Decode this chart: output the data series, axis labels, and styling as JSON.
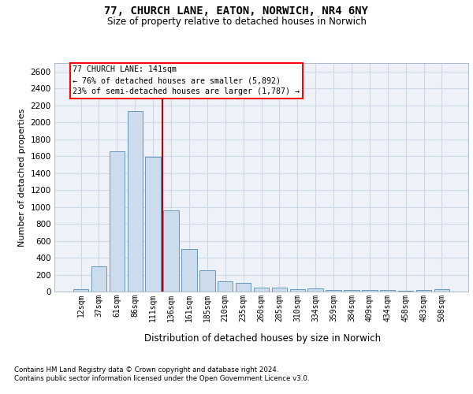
{
  "title_line1": "77, CHURCH LANE, EATON, NORWICH, NR4 6NY",
  "title_line2": "Size of property relative to detached houses in Norwich",
  "xlabel": "Distribution of detached houses by size in Norwich",
  "ylabel": "Number of detached properties",
  "bar_color": "#ccdcec",
  "bar_edge_color": "#6699bb",
  "grid_color": "#ccd8e8",
  "background_color": "#eef2f8",
  "vline_color": "#bb0000",
  "categories": [
    "12sqm",
    "37sqm",
    "61sqm",
    "86sqm",
    "111sqm",
    "136sqm",
    "161sqm",
    "185sqm",
    "210sqm",
    "235sqm",
    "260sqm",
    "285sqm",
    "310sqm",
    "334sqm",
    "359sqm",
    "384sqm",
    "409sqm",
    "434sqm",
    "458sqm",
    "483sqm",
    "508sqm"
  ],
  "values": [
    25,
    295,
    1660,
    2130,
    1595,
    960,
    500,
    250,
    120,
    100,
    50,
    50,
    30,
    35,
    20,
    20,
    20,
    20,
    5,
    20,
    25
  ],
  "vline_x": 4.5,
  "annotation_line1": "77 CHURCH LANE: 141sqm",
  "annotation_line2": "← 76% of detached houses are smaller (5,892)",
  "annotation_line3": "23% of semi-detached houses are larger (1,787) →",
  "footnote_line1": "Contains HM Land Registry data © Crown copyright and database right 2024.",
  "footnote_line2": "Contains public sector information licensed under the Open Government Licence v3.0.",
  "ylim_max": 2700,
  "yticks": [
    0,
    200,
    400,
    600,
    800,
    1000,
    1200,
    1400,
    1600,
    1800,
    2000,
    2200,
    2400,
    2600
  ]
}
